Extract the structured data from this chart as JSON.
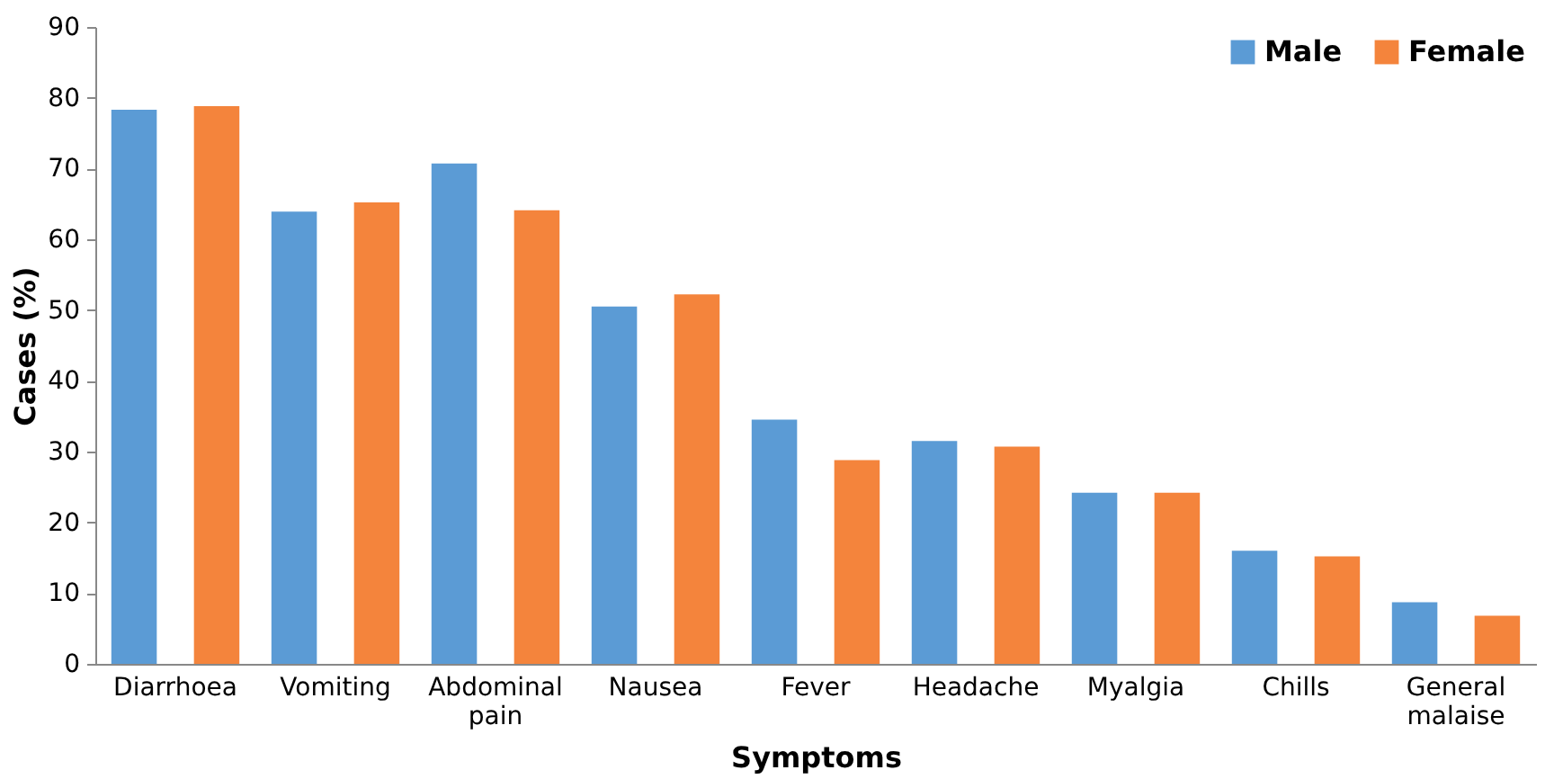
{
  "chart_data": {
    "type": "bar",
    "xlabel": "Symptoms",
    "ylabel": "Cases (%)",
    "categories": [
      "Diarrhoea",
      "Vomiting",
      "Abdominal pain",
      "Nausea",
      "Fever",
      "Headache",
      "Myalgia",
      "Chills",
      "General malaise"
    ],
    "series": [
      {
        "name": "Male",
        "color": "#5b9bd5",
        "values": [
          78.3,
          63.9,
          70.7,
          50.5,
          34.5,
          31.5,
          24.2,
          16.0,
          8.7
        ]
      },
      {
        "name": "Female",
        "color": "#f4843c",
        "values": [
          78.8,
          65.2,
          64.1,
          52.2,
          28.8,
          30.7,
          24.2,
          15.2,
          6.8
        ]
      }
    ],
    "ylim": [
      0,
      90
    ],
    "yticks": [
      0,
      10,
      20,
      30,
      40,
      50,
      60,
      70,
      80,
      90
    ],
    "grid": false,
    "legend": "top right"
  }
}
